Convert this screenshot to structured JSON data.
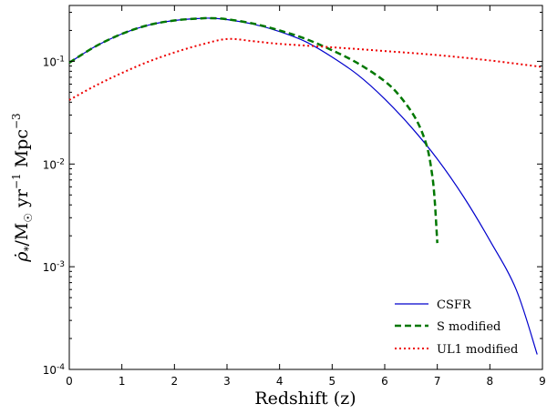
{
  "chart_data": {
    "type": "line",
    "title": "",
    "xlabel": "Redshift (z)",
    "ylabel_main": "ρ̇",
    "ylabel_sub": "*",
    "ylabel_rest": "/M",
    "ylabel_sun": "☉",
    "ylabel_yr": " yr",
    "ylabel_yr_exp": "−1",
    "ylabel_mpc": " Mpc",
    "ylabel_mpc_exp": "−3",
    "xlim": [
      0,
      9
    ],
    "ylim": [
      0.0001,
      0.35
    ],
    "yscale": "log",
    "xticks": [
      "0",
      "1",
      "2",
      "3",
      "4",
      "5",
      "6",
      "7",
      "8",
      "9"
    ],
    "yticks": [
      {
        "value": 0.0001,
        "base": "10",
        "exp": "-4"
      },
      {
        "value": 0.001,
        "base": "10",
        "exp": "-3"
      },
      {
        "value": 0.01,
        "base": "10",
        "exp": "-2"
      },
      {
        "value": 0.1,
        "base": "10",
        "exp": "-1"
      }
    ],
    "grid": false,
    "legend_position": "lower-right",
    "series": [
      {
        "name": "CSFR",
        "color": "#0000cc",
        "style": "solid",
        "x": [
          0,
          0.5,
          1,
          1.5,
          2,
          2.5,
          2.7,
          3,
          3.5,
          4,
          4.5,
          5,
          5.5,
          6,
          6.5,
          7,
          7.5,
          8,
          8.5,
          8.9
        ],
        "y": [
          0.097,
          0.14,
          0.185,
          0.225,
          0.25,
          0.262,
          0.263,
          0.255,
          0.23,
          0.195,
          0.155,
          0.11,
          0.073,
          0.043,
          0.023,
          0.0112,
          0.0048,
          0.0018,
          0.0006,
          0.00014
        ]
      },
      {
        "name": "S modified",
        "color": "#007700",
        "style": "dashed",
        "x": [
          0,
          0.5,
          1,
          1.5,
          2,
          2.5,
          2.7,
          3,
          3.5,
          4,
          4.5,
          5,
          5.5,
          6,
          6.3,
          6.6,
          6.8,
          6.9,
          6.95,
          7.0
        ],
        "y": [
          0.097,
          0.14,
          0.185,
          0.225,
          0.25,
          0.262,
          0.263,
          0.257,
          0.233,
          0.2,
          0.165,
          0.128,
          0.095,
          0.064,
          0.045,
          0.027,
          0.015,
          0.008,
          0.0045,
          0.0017
        ]
      },
      {
        "name": "UL1 modified",
        "color": "#ee0000",
        "style": "dotted",
        "x": [
          0,
          0.5,
          1,
          1.5,
          2,
          2.5,
          3,
          3.5,
          4,
          5,
          6,
          7,
          8,
          9
        ],
        "y": [
          0.042,
          0.058,
          0.077,
          0.099,
          0.122,
          0.145,
          0.165,
          0.157,
          0.148,
          0.137,
          0.126,
          0.115,
          0.102,
          0.088
        ]
      }
    ]
  }
}
